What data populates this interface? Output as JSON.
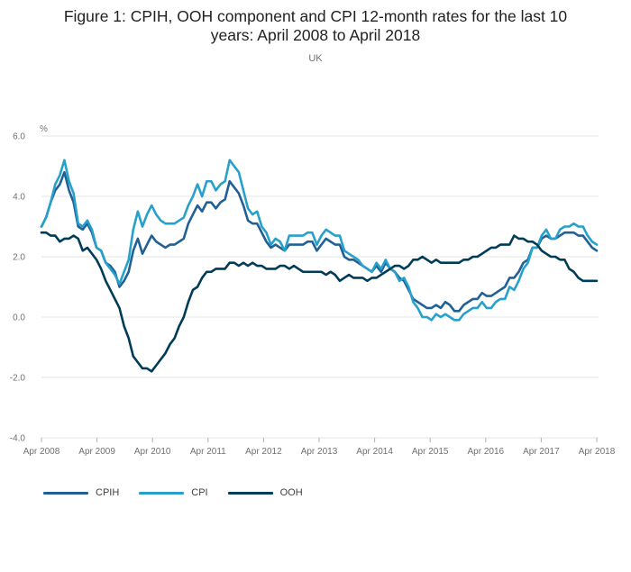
{
  "header": {
    "title_line1": "Figure 1: CPIH, OOH component and CPI 12-month rates for the last 10",
    "title_line2": "years: April 2008 to April 2018",
    "subtitle": "UK"
  },
  "chart_data": {
    "type": "line",
    "title": "Figure 1: CPIH, OOH component and CPI 12-month rates for the last 10 years: April 2008 to April 2018",
    "subtitle": "UK",
    "ylabel": "%",
    "ylim": [
      -4.0,
      6.0
    ],
    "yticks": [
      "6.0",
      "4.0",
      "2.0",
      "0.0",
      "-2.0",
      "-4.0"
    ],
    "x_start": "Apr 2008",
    "x_end": "Apr 2018",
    "xticks": [
      "Apr 2008",
      "Apr 2009",
      "Apr 2010",
      "Apr 2011",
      "Apr 2012",
      "Apr 2013",
      "Apr 2014",
      "Apr 2015",
      "Apr 2016",
      "Apr 2017",
      "Apr 2018"
    ],
    "grid": true,
    "legend_position": "bottom-left",
    "series": [
      {
        "name": "CPIH",
        "color": "#206095",
        "values": [
          3.0,
          3.3,
          3.8,
          4.2,
          4.4,
          4.8,
          4.2,
          3.8,
          3.0,
          2.9,
          3.1,
          2.8,
          2.3,
          2.2,
          1.8,
          1.7,
          1.5,
          1.0,
          1.2,
          1.5,
          2.2,
          2.6,
          2.1,
          2.4,
          2.7,
          2.5,
          2.4,
          2.3,
          2.4,
          2.4,
          2.5,
          2.6,
          3.1,
          3.4,
          3.7,
          3.5,
          3.8,
          3.8,
          3.6,
          3.8,
          3.9,
          4.5,
          4.3,
          4.1,
          3.7,
          3.2,
          3.1,
          3.1,
          2.8,
          2.5,
          2.3,
          2.4,
          2.3,
          2.2,
          2.4,
          2.4,
          2.4,
          2.4,
          2.5,
          2.5,
          2.2,
          2.4,
          2.6,
          2.5,
          2.4,
          2.4,
          2.0,
          1.9,
          1.9,
          1.8,
          1.7,
          1.6,
          1.5,
          1.7,
          1.5,
          1.8,
          1.6,
          1.5,
          1.3,
          1.2,
          0.9,
          0.6,
          0.5,
          0.4,
          0.3,
          0.3,
          0.4,
          0.3,
          0.5,
          0.4,
          0.2,
          0.2,
          0.4,
          0.5,
          0.6,
          0.6,
          0.8,
          0.7,
          0.7,
          0.8,
          0.9,
          1.0,
          1.3,
          1.3,
          1.5,
          1.8,
          1.9,
          2.3,
          2.3,
          2.6,
          2.7,
          2.6,
          2.6,
          2.7,
          2.8,
          2.8,
          2.8,
          2.7,
          2.7,
          2.5,
          2.3,
          2.2
        ]
      },
      {
        "name": "CPI",
        "color": "#27a0cc",
        "values": [
          3.0,
          3.3,
          3.8,
          4.4,
          4.7,
          5.2,
          4.5,
          4.1,
          3.1,
          3.0,
          3.2,
          2.9,
          2.3,
          2.2,
          1.8,
          1.6,
          1.4,
          1.1,
          1.5,
          1.9,
          2.9,
          3.5,
          3.0,
          3.4,
          3.7,
          3.4,
          3.2,
          3.1,
          3.1,
          3.1,
          3.2,
          3.3,
          3.7,
          4.0,
          4.4,
          4.0,
          4.5,
          4.5,
          4.2,
          4.4,
          4.5,
          5.2,
          5.0,
          4.8,
          4.2,
          3.6,
          3.4,
          3.5,
          3.0,
          2.8,
          2.4,
          2.6,
          2.5,
          2.2,
          2.7,
          2.7,
          2.7,
          2.7,
          2.8,
          2.8,
          2.4,
          2.7,
          2.9,
          2.8,
          2.7,
          2.7,
          2.2,
          2.1,
          2.0,
          1.9,
          1.7,
          1.6,
          1.5,
          1.8,
          1.6,
          1.9,
          1.6,
          1.5,
          1.2,
          1.3,
          1.0,
          0.5,
          0.3,
          0.0,
          0.0,
          -0.1,
          0.1,
          0.0,
          0.1,
          0.0,
          -0.1,
          -0.1,
          0.1,
          0.2,
          0.3,
          0.3,
          0.5,
          0.3,
          0.3,
          0.5,
          0.6,
          0.6,
          1.0,
          0.9,
          1.2,
          1.6,
          1.8,
          2.3,
          2.3,
          2.7,
          2.9,
          2.6,
          2.6,
          2.9,
          3.0,
          3.0,
          3.1,
          3.0,
          3.0,
          2.7,
          2.5,
          2.4
        ]
      },
      {
        "name": "OOH",
        "color": "#003c57",
        "values": [
          2.8,
          2.8,
          2.7,
          2.7,
          2.5,
          2.6,
          2.6,
          2.7,
          2.6,
          2.2,
          2.3,
          2.1,
          1.9,
          1.6,
          1.2,
          0.9,
          0.6,
          0.3,
          -0.3,
          -0.7,
          -1.3,
          -1.5,
          -1.7,
          -1.7,
          -1.8,
          -1.6,
          -1.4,
          -1.2,
          -0.9,
          -0.7,
          -0.3,
          0.0,
          0.5,
          0.9,
          1.0,
          1.3,
          1.5,
          1.5,
          1.6,
          1.6,
          1.6,
          1.8,
          1.8,
          1.7,
          1.8,
          1.7,
          1.8,
          1.7,
          1.7,
          1.6,
          1.6,
          1.6,
          1.7,
          1.7,
          1.6,
          1.7,
          1.6,
          1.5,
          1.5,
          1.5,
          1.5,
          1.5,
          1.4,
          1.5,
          1.4,
          1.2,
          1.3,
          1.4,
          1.3,
          1.3,
          1.3,
          1.2,
          1.3,
          1.3,
          1.4,
          1.5,
          1.6,
          1.7,
          1.7,
          1.6,
          1.7,
          1.9,
          1.9,
          2.0,
          1.9,
          1.8,
          1.9,
          1.8,
          1.8,
          1.8,
          1.8,
          1.8,
          1.9,
          1.9,
          2.0,
          2.0,
          2.1,
          2.2,
          2.3,
          2.3,
          2.4,
          2.4,
          2.4,
          2.7,
          2.6,
          2.6,
          2.5,
          2.5,
          2.4,
          2.2,
          2.1,
          2.0,
          2.0,
          1.9,
          1.9,
          1.6,
          1.5,
          1.3,
          1.2,
          1.2,
          1.2,
          1.2
        ]
      }
    ]
  },
  "legend": {
    "items": [
      {
        "label": "CPIH",
        "color": "#206095"
      },
      {
        "label": "CPI",
        "color": "#27a0cc"
      },
      {
        "label": "OOH",
        "color": "#003c57"
      }
    ]
  }
}
